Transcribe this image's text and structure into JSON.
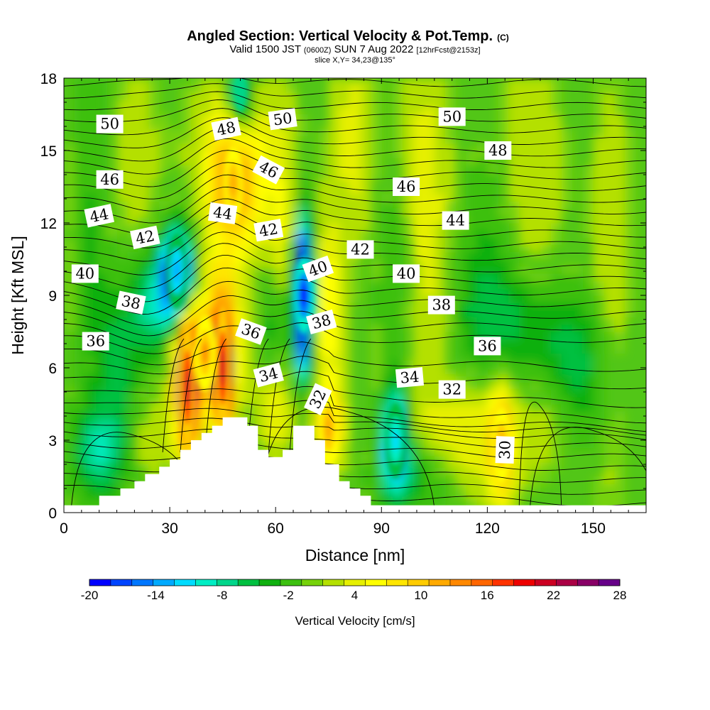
{
  "chart_data": {
    "type": "heatmap",
    "title": "Angled Section: Vertical Velocity & Pot.Temp.",
    "title_mark": "(C)",
    "subtitle": {
      "valid_prefix": "Valid 1500 JST",
      "zulu": "(0600Z)",
      "date": "SUN 7 Aug 2022",
      "forecast": "[12hrFcst@2153z]"
    },
    "slice_info": "slice X,Y= 34,23@135°",
    "xlabel": "Distance [nm]",
    "ylabel": "Height [Kft MSL]",
    "xlim": [
      0,
      165
    ],
    "ylim": [
      0,
      18
    ],
    "x_ticks": [
      "0",
      "30",
      "60",
      "90",
      "120",
      "150"
    ],
    "y_ticks": [
      "0",
      "3",
      "6",
      "9",
      "12",
      "15",
      "18"
    ],
    "colorbar": {
      "label": "Vertical Velocity [cm/s]",
      "tick_labels": [
        "-20",
        "-14",
        "-8",
        "-2",
        "4",
        "10",
        "16",
        "22",
        "28"
      ],
      "bounds": [
        -20,
        28
      ],
      "colors": [
        "#0000ff",
        "#0044ff",
        "#0077ff",
        "#00aaff",
        "#00dcff",
        "#00eec4",
        "#00d68a",
        "#00c040",
        "#10b010",
        "#3cc010",
        "#76d20a",
        "#b4e000",
        "#e6f000",
        "#ffff00",
        "#ffe600",
        "#ffcc00",
        "#ffaa00",
        "#ff8800",
        "#ff6600",
        "#ff3300",
        "#ee0000",
        "#cc0022",
        "#aa0044",
        "#880066",
        "#660088"
      ]
    },
    "terrain_profile_kft": [
      [
        0,
        0.3
      ],
      [
        10,
        0.3
      ],
      [
        10,
        0.7
      ],
      [
        16,
        0.7
      ],
      [
        16,
        1.0
      ],
      [
        20,
        1.0
      ],
      [
        20,
        1.3
      ],
      [
        23,
        1.3
      ],
      [
        23,
        1.6
      ],
      [
        27,
        1.6
      ],
      [
        27,
        1.9
      ],
      [
        30,
        1.9
      ],
      [
        30,
        2.2
      ],
      [
        33,
        2.2
      ],
      [
        33,
        2.6
      ],
      [
        36,
        2.6
      ],
      [
        36,
        3.0
      ],
      [
        39,
        3.0
      ],
      [
        39,
        3.3
      ],
      [
        42,
        3.3
      ],
      [
        42,
        3.6
      ],
      [
        45,
        3.6
      ],
      [
        45,
        3.95
      ],
      [
        52,
        3.95
      ],
      [
        52,
        3.6
      ],
      [
        55,
        3.6
      ],
      [
        55,
        2.6
      ],
      [
        58,
        2.6
      ],
      [
        58,
        2.3
      ],
      [
        62,
        2.3
      ],
      [
        62,
        2.6
      ],
      [
        65,
        2.6
      ],
      [
        65,
        3.6
      ],
      [
        71,
        3.6
      ],
      [
        71,
        3.0
      ],
      [
        74,
        3.0
      ],
      [
        74,
        2.0
      ],
      [
        78,
        2.0
      ],
      [
        78,
        1.3
      ],
      [
        81,
        1.3
      ],
      [
        81,
        1.0
      ],
      [
        84,
        1.0
      ],
      [
        84,
        0.7
      ],
      [
        87,
        0.7
      ],
      [
        87,
        0.3
      ],
      [
        165,
        0.3
      ]
    ],
    "vertical_velocity_cells_cm_s": [
      {
        "x": 35,
        "y": 5.2,
        "value": 22
      },
      {
        "x": 45,
        "y": 6.0,
        "value": 22
      },
      {
        "x": 40,
        "y": 6.6,
        "value": 14
      },
      {
        "x": 48,
        "y": 13.6,
        "value": 12
      },
      {
        "x": 68,
        "y": 9.0,
        "value": -20
      },
      {
        "x": 32,
        "y": 10.0,
        "value": -14
      },
      {
        "x": 94,
        "y": 3.0,
        "value": -12
      },
      {
        "x": 50,
        "y": 17.5,
        "value": -8
      },
      {
        "x": 124,
        "y": 2.8,
        "value": 12
      },
      {
        "x": 115,
        "y": 3.0,
        "value": 4
      },
      {
        "x": 75,
        "y": 3.5,
        "value": 12
      }
    ],
    "potential_temperature_contours_label_positions": [
      {
        "label": "50",
        "x": 13,
        "y": 16.1
      },
      {
        "label": "48",
        "x": 46,
        "y": 15.9
      },
      {
        "label": "50",
        "x": 62,
        "y": 16.3
      },
      {
        "label": "50",
        "x": 110,
        "y": 16.4
      },
      {
        "label": "48",
        "x": 123,
        "y": 15.0
      },
      {
        "label": "46",
        "x": 13,
        "y": 13.8
      },
      {
        "label": "46",
        "x": 58,
        "y": 14.2
      },
      {
        "label": "46",
        "x": 97,
        "y": 13.5
      },
      {
        "label": "44",
        "x": 10,
        "y": 12.3
      },
      {
        "label": "44",
        "x": 45,
        "y": 12.4
      },
      {
        "label": "44",
        "x": 111,
        "y": 12.1
      },
      {
        "label": "42",
        "x": 23,
        "y": 11.4
      },
      {
        "label": "42",
        "x": 58,
        "y": 11.7
      },
      {
        "label": "42",
        "x": 84,
        "y": 10.9
      },
      {
        "label": "40",
        "x": 6,
        "y": 9.9
      },
      {
        "label": "40",
        "x": 72,
        "y": 10.1
      },
      {
        "label": "40",
        "x": 97,
        "y": 9.9
      },
      {
        "label": "38",
        "x": 19,
        "y": 8.7
      },
      {
        "label": "38",
        "x": 73,
        "y": 7.9
      },
      {
        "label": "38",
        "x": 107,
        "y": 8.6
      },
      {
        "label": "36",
        "x": 9,
        "y": 7.1
      },
      {
        "label": "36",
        "x": 53,
        "y": 7.5
      },
      {
        "label": "36",
        "x": 120,
        "y": 6.9
      },
      {
        "label": "34",
        "x": 58,
        "y": 5.7
      },
      {
        "label": "34",
        "x": 98,
        "y": 5.6
      },
      {
        "label": "32",
        "x": 72,
        "y": 4.7
      },
      {
        "label": "32",
        "x": 110,
        "y": 5.1
      },
      {
        "label": "30",
        "x": 125,
        "y": 2.6
      }
    ]
  }
}
